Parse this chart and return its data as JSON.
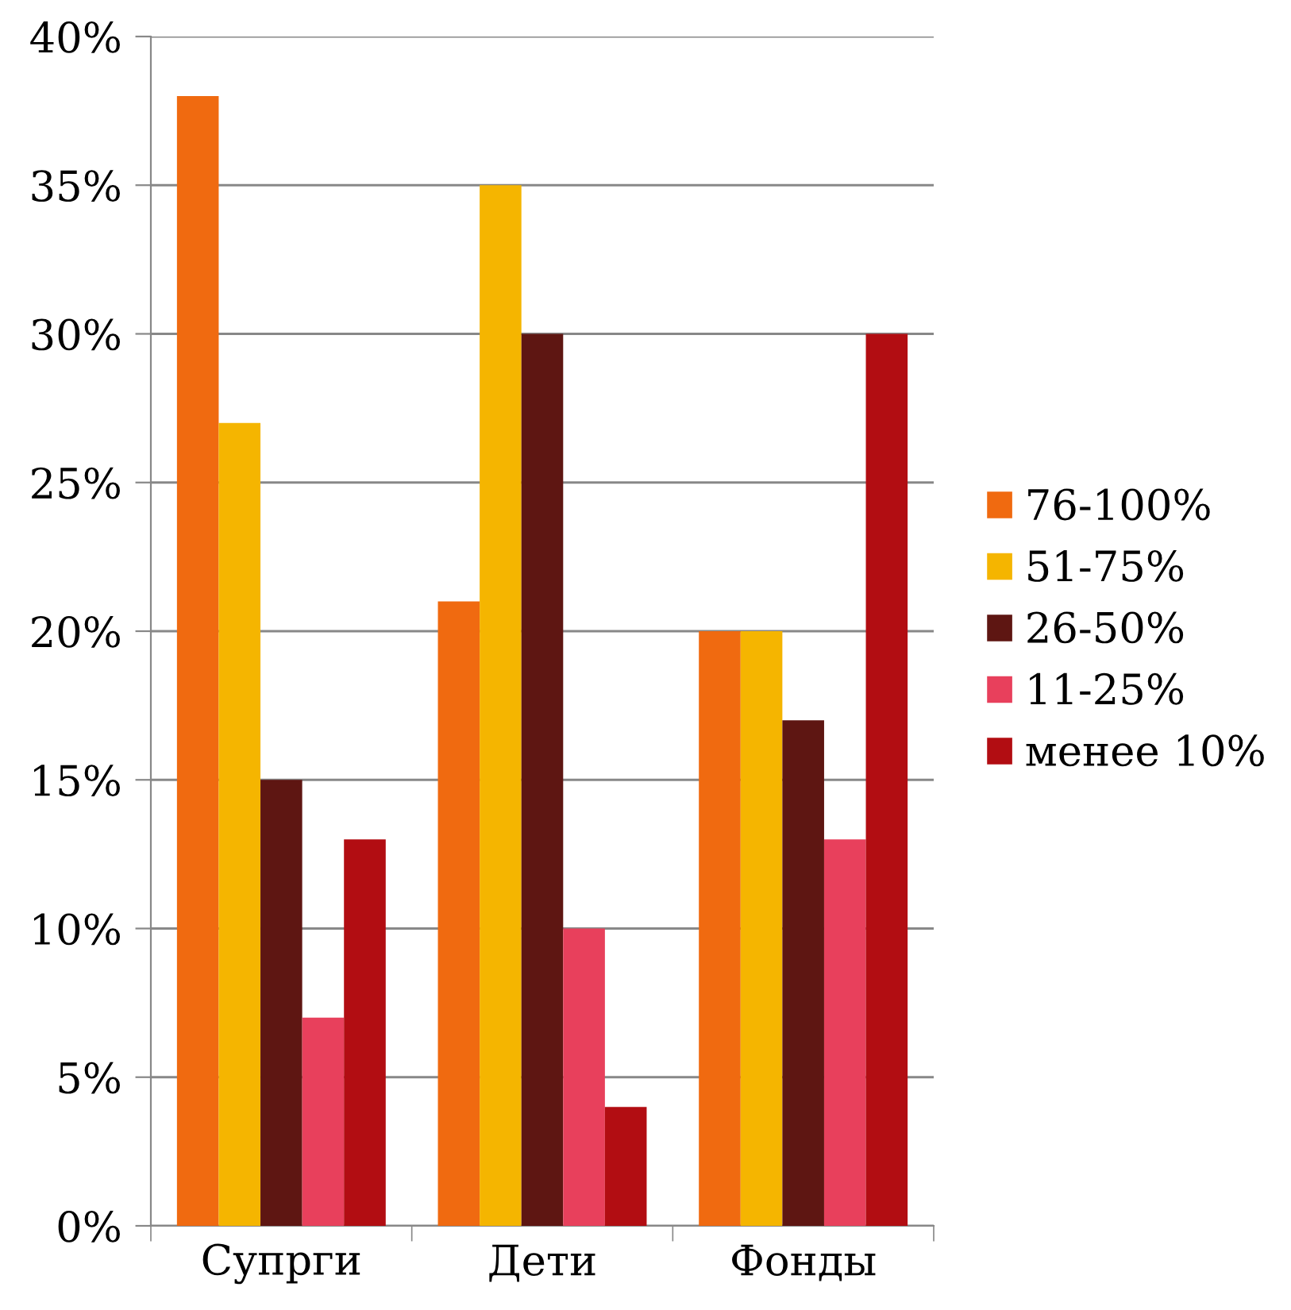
{
  "chart_data": {
    "type": "bar",
    "categories": [
      "Супрги",
      "Дети",
      "Фонды"
    ],
    "series": [
      {
        "name": "76-100%",
        "color": "#f06a10",
        "values": [
          38,
          21,
          20
        ]
      },
      {
        "name": "51-75%",
        "color": "#f5b500",
        "values": [
          27,
          35,
          20
        ]
      },
      {
        "name": "26-50%",
        "color": "#5e1612",
        "values": [
          15,
          30,
          17
        ]
      },
      {
        "name": "11-25%",
        "color": "#e8405c",
        "values": [
          7,
          10,
          13
        ]
      },
      {
        "name": "менее 10%",
        "color": "#b20d12",
        "values": [
          13,
          4,
          30
        ]
      }
    ],
    "ylim": [
      0,
      40
    ],
    "yticks": [
      {
        "value": 0,
        "label": "0%"
      },
      {
        "value": 5,
        "label": "5%"
      },
      {
        "value": 10,
        "label": "10%"
      },
      {
        "value": 15,
        "label": "15%"
      },
      {
        "value": 20,
        "label": "20%"
      },
      {
        "value": 25,
        "label": "25%"
      },
      {
        "value": 30,
        "label": "30%"
      },
      {
        "value": 35,
        "label": "35%"
      },
      {
        "value": 40,
        "label": "40%"
      }
    ],
    "grid": "y",
    "legend": "right"
  }
}
